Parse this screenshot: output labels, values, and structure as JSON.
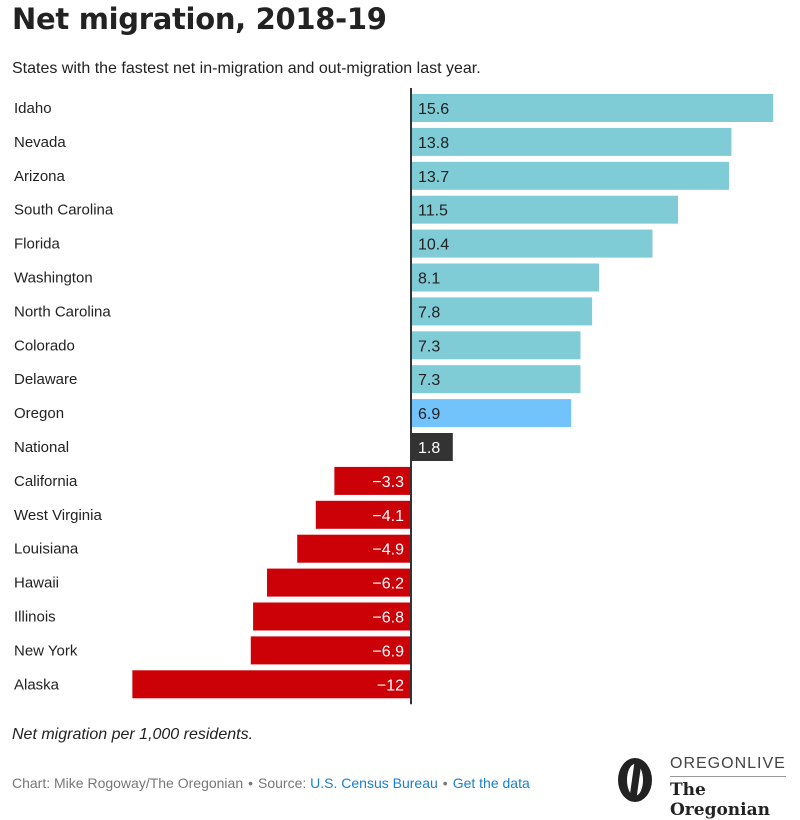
{
  "header": {
    "title": "Net migration, 2018-19",
    "subtitle": "States with the fastest net in-migration and out-migration last year."
  },
  "footer": {
    "note": "Net migration per 1,000 residents.",
    "credit": "Chart: Mike Rogoway/The Oregonian",
    "source_label": "Source:",
    "source_link": "U.S. Census Bureau",
    "data_link": "Get the data",
    "separator": "•"
  },
  "logo": {
    "top_text": "OREGONLIVE",
    "bottom_text": "The Oregonian"
  },
  "colors": {
    "positive": "#80ccd6",
    "highlight": "#72c2fc",
    "national": "#333333",
    "negative": "#cc0007"
  },
  "chart_data": {
    "type": "bar",
    "orientation": "horizontal",
    "title": "Net migration, 2018-19",
    "subtitle": "States with the fastest net in-migration and out-migration last year.",
    "xlabel": "Net migration per 1,000 residents",
    "ylabel": "",
    "xlim": [
      -12,
      15.6
    ],
    "grid": false,
    "categories": [
      "Idaho",
      "Nevada",
      "Arizona",
      "South Carolina",
      "Florida",
      "Washington",
      "North Carolina",
      "Colorado",
      "Delaware",
      "Oregon",
      "National",
      "California",
      "West Virginia",
      "Louisiana",
      "Hawaii",
      "Illinois",
      "New York",
      "Alaska"
    ],
    "values": [
      15.6,
      13.8,
      13.7,
      11.5,
      10.4,
      8.1,
      7.8,
      7.3,
      7.3,
      6.9,
      1.8,
      -3.3,
      -4.1,
      -4.9,
      -6.2,
      -6.8,
      -6.9,
      -12
    ],
    "labels": [
      "15.6",
      "13.8",
      "13.7",
      "11.5",
      "10.4",
      "8.1",
      "7.8",
      "7.3",
      "7.3",
      "6.9",
      "1.8",
      "−3.3",
      "−4.1",
      "−4.9",
      "−6.2",
      "−6.8",
      "−6.9",
      "−12"
    ],
    "highlight": {
      "Oregon": "highlight",
      "National": "national"
    }
  }
}
